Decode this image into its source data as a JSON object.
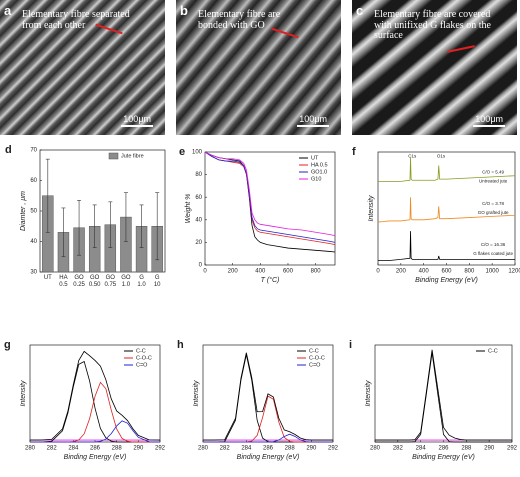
{
  "images": [
    {
      "label": "a",
      "caption": "Elementary fibre separated from each other",
      "scale": "100μm"
    },
    {
      "label": "b",
      "caption": "Elementary fibre are bonded with GO",
      "scale": "100μm"
    },
    {
      "label": "c",
      "caption": "Elementary fibre are covered with unifixed G flakes on the surface",
      "scale": "100μm"
    }
  ],
  "chart_data": [
    {
      "type": "bar",
      "label": "d",
      "ylabel": "Diamter , μm",
      "categories": [
        "UT",
        "HA 0.5",
        "GO 0.25",
        "GO 0.50",
        "GO 0.75",
        "GO 1.0",
        "G 1.0",
        "G 10"
      ],
      "series": [
        {
          "name": "Jute fibre",
          "color": "#8c8c8c",
          "values": [
            55,
            43,
            44.5,
            45,
            45.5,
            48,
            45,
            45
          ],
          "errors": [
            12,
            8,
            9,
            7,
            7.5,
            8,
            7,
            11
          ]
        }
      ],
      "ylim": [
        30,
        70
      ],
      "yticks": [
        30,
        40,
        50,
        60,
        70
      ]
    },
    {
      "type": "line",
      "label": "e",
      "xlabel": "T (°C)",
      "ylabel": "Weight %",
      "x": [
        0,
        50,
        100,
        150,
        200,
        250,
        280,
        300,
        320,
        340,
        360,
        380,
        400,
        450,
        500,
        600,
        700,
        800,
        900,
        940
      ],
      "series": [
        {
          "name": "UT",
          "color": "#000000",
          "values": [
            100,
            97,
            95,
            94,
            93,
            92,
            88,
            80,
            60,
            35,
            25,
            22,
            20,
            18,
            17,
            15,
            14,
            13,
            12,
            11.5
          ]
        },
        {
          "name": "HA 0.5",
          "color": "#e02020",
          "values": [
            100,
            96,
            93,
            92,
            91,
            90,
            87,
            80,
            62,
            40,
            33,
            30,
            29,
            28,
            27,
            25,
            23,
            21,
            19,
            18
          ]
        },
        {
          "name": "GO1.0",
          "color": "#2020d0",
          "values": [
            100,
            96,
            93,
            92,
            92,
            91,
            88,
            81,
            63,
            42,
            35,
            32,
            31,
            30,
            29,
            27,
            25,
            23,
            21,
            20
          ]
        },
        {
          "name": "G10",
          "color": "#e020e0",
          "values": [
            100,
            97,
            95,
            94,
            94,
            93,
            90,
            84,
            67,
            46,
            40,
            37,
            36,
            35,
            34,
            32,
            31,
            29,
            27,
            26
          ]
        }
      ],
      "xlim": [
        0,
        940
      ],
      "xticks": [
        0,
        200,
        400,
        600,
        800
      ],
      "ylim": [
        0,
        100
      ],
      "yticks": [
        0,
        20,
        40,
        60,
        80,
        100
      ]
    },
    {
      "type": "line",
      "label": "f",
      "xlabel": "Binding Energy (eV)",
      "ylabel": "Intensity",
      "x": [
        0,
        100,
        200,
        280,
        285,
        290,
        300,
        400,
        500,
        525,
        532,
        540,
        600,
        800,
        1000,
        1200
      ],
      "series": [
        {
          "color": "#8a9a20",
          "values": [
            74,
            74,
            74,
            75,
            95,
            76,
            75,
            75,
            75,
            76,
            88,
            76,
            76,
            77,
            78,
            79
          ]
        },
        {
          "color": "#f08a20",
          "values": [
            38,
            39,
            39,
            40,
            60,
            41,
            40,
            40,
            41,
            42,
            52,
            41,
            41,
            42,
            43,
            44
          ]
        },
        {
          "color": "#000000",
          "values": [
            4,
            4,
            5,
            6,
            30,
            6,
            5,
            5,
            5,
            5,
            8,
            5,
            5,
            5,
            5,
            5
          ]
        }
      ],
      "annotations": [
        "C1s",
        "O1s",
        "C/O = 5.49",
        "Untreated jute",
        "C/O = 3.78",
        "GO grafted jute",
        "C/O = 16.36",
        "G flakes coated jute"
      ],
      "xlim": [
        0,
        1200
      ],
      "xticks": [
        0,
        200,
        400,
        600,
        800,
        1000,
        1200
      ],
      "ylim": [
        0,
        100
      ]
    },
    {
      "type": "line",
      "label": "g",
      "xlabel": "Binding Energy (eV)",
      "ylabel": "Intensity",
      "x": [
        280,
        281,
        282,
        283,
        283.5,
        284,
        284.5,
        285,
        285.5,
        286,
        286.5,
        287,
        287.5,
        288,
        288.5,
        289,
        289.5,
        290,
        291,
        292
      ],
      "envelope": {
        "color": "#000000",
        "values": [
          2,
          2,
          2.7,
          13.5,
          32,
          59.3,
          84,
          93.4,
          89,
          84.1,
          78.2,
          64.3,
          44.5,
          32,
          27.5,
          22.1,
          13.7,
          6.8,
          2.2,
          2
        ]
      },
      "baseline": {
        "color": "#e020e0",
        "values": [
          2,
          2,
          2,
          2,
          2,
          2,
          2,
          2,
          2,
          2,
          2,
          2,
          2,
          2,
          2,
          2,
          2,
          2,
          2,
          2
        ]
      },
      "series": [
        {
          "name": "C-C",
          "color": "#000000",
          "values": [
            0,
            0,
            0.7,
            11.5,
            30,
            57,
            80,
            83,
            63,
            35,
            14,
            4.3,
            0.9,
            0,
            0,
            0,
            0,
            0,
            0,
            0
          ]
        },
        {
          "name": "C-O-C",
          "color": "#e02020",
          "values": [
            0,
            0,
            0,
            0,
            0,
            0.3,
            2,
            8.4,
            24,
            47,
            61.5,
            55,
            33,
            13.4,
            3.7,
            0.7,
            0,
            0,
            0,
            0
          ]
        },
        {
          "name": "C=O",
          "color": "#2020d0",
          "values": [
            0,
            0,
            0,
            0,
            0,
            0,
            0,
            0,
            0,
            0.1,
            0.7,
            3,
            8.6,
            16.6,
            21.8,
            19.4,
            11.7,
            4.8,
            0.2,
            0
          ]
        }
      ],
      "xlim": [
        280,
        292
      ],
      "xticks": [
        280,
        282,
        284,
        286,
        288,
        290,
        292
      ],
      "ylim": [
        0,
        100
      ]
    },
    {
      "type": "line",
      "label": "h",
      "xlabel": "Binding Energy (eV)",
      "ylabel": "Intensity",
      "x": [
        280,
        281,
        282,
        283,
        283.5,
        284,
        284.5,
        285,
        285.5,
        286,
        286.5,
        287,
        287.5,
        288,
        288.5,
        289,
        289.5,
        290,
        291,
        292
      ],
      "envelope": {
        "color": "#000000",
        "values": [
          2,
          2,
          2.3,
          24.4,
          65.6,
          92,
          66.5,
          31.2,
          31.3,
          49.6,
          46.4,
          24.5,
          12.5,
          10.6,
          7.7,
          4,
          2.4,
          2,
          2,
          2
        ]
      },
      "baseline": {
        "color": "#e020e0",
        "values": [
          2,
          2,
          2,
          2,
          2,
          2,
          2,
          2,
          2,
          2,
          2,
          2,
          2,
          2,
          2,
          2,
          2,
          2,
          2,
          2
        ]
      },
      "series": [
        {
          "name": "C-C",
          "color": "#000000",
          "values": [
            0,
            0,
            0.3,
            22.4,
            63.6,
            90,
            63.6,
            22.4,
            4,
            0.3,
            0,
            0,
            0,
            0,
            0,
            0,
            0,
            0,
            0,
            0
          ]
        },
        {
          "name": "C-O-C",
          "color": "#e02020",
          "values": [
            0,
            0,
            0,
            0,
            0,
            0,
            0.9,
            6.8,
            25.3,
            47.3,
            44,
            20.5,
            4.8,
            0.6,
            0,
            0,
            0,
            0,
            0,
            0
          ]
        },
        {
          "name": "C=O",
          "color": "#2020d0",
          "values": [
            0,
            0,
            0,
            0,
            0,
            0,
            0,
            0,
            0,
            0,
            0.4,
            2,
            5.7,
            8,
            5.7,
            2,
            0.4,
            0,
            0,
            0
          ]
        }
      ],
      "xlim": [
        280,
        292
      ],
      "xticks": [
        280,
        282,
        284,
        286,
        288,
        290,
        292
      ],
      "ylim": [
        0,
        100
      ]
    },
    {
      "type": "line",
      "label": "i",
      "xlabel": "Binding Energy (eV)",
      "ylabel": "Intensity",
      "x": [
        280,
        281,
        282,
        283,
        283.5,
        284,
        284.5,
        285,
        285.5,
        286,
        286.5,
        287,
        287.5,
        288,
        288.5,
        289,
        289.5,
        290,
        291,
        292
      ],
      "envelope": {
        "color": "#000000",
        "values": [
          2,
          2,
          2,
          2,
          2.4,
          10,
          52,
          95,
          55,
          15,
          7,
          4,
          2.5,
          2,
          2,
          2,
          2,
          2,
          2,
          2
        ]
      },
      "baseline": {
        "color": "#e020e0",
        "values": [
          2,
          2,
          2,
          2,
          2,
          2,
          2,
          2,
          2,
          2,
          2,
          2,
          2,
          2,
          2,
          2,
          2,
          2,
          2,
          2
        ]
      },
      "series": [
        {
          "name": "C-C",
          "color": "#000000",
          "values": [
            0,
            0,
            0,
            0,
            0.4,
            7.8,
            49.6,
            92,
            49.6,
            7.8,
            0.4,
            0,
            0,
            0,
            0,
            0,
            0,
            0,
            0,
            0
          ]
        }
      ],
      "xlim": [
        280,
        292
      ],
      "xticks": [
        280,
        282,
        284,
        286,
        288,
        290,
        292
      ],
      "ylim": [
        0,
        100
      ]
    }
  ]
}
